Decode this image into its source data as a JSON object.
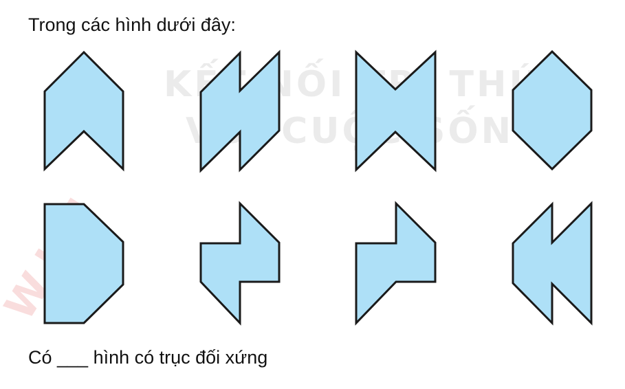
{
  "question": {
    "text": "Trong các hình dưới đây:"
  },
  "answer": {
    "text": "Có ___ hình có trục đối xứng"
  },
  "watermark": {
    "line1": "KẾT NỐI TRI THỨC",
    "line2": "VỚI CUỘC SỐNG",
    "side": "W.LOI"
  },
  "colors": {
    "shape_fill": "#aee0f7",
    "shape_stroke": "#1a1a1a"
  },
  "shapes": [
    {
      "row": 1,
      "col": 1,
      "shape": "chevron-up"
    },
    {
      "row": 1,
      "col": 2,
      "shape": "double-notch-parallelogram"
    },
    {
      "row": 1,
      "col": 3,
      "shape": "bowtie-notched"
    },
    {
      "row": 1,
      "col": 4,
      "shape": "hexagon"
    },
    {
      "row": 2,
      "col": 1,
      "shape": "half-octagon"
    },
    {
      "row": 2,
      "col": 2,
      "shape": "step-polygon-left"
    },
    {
      "row": 2,
      "col": 3,
      "shape": "step-polygon-right"
    },
    {
      "row": 2,
      "col": 4,
      "shape": "double-arrow-left"
    }
  ]
}
